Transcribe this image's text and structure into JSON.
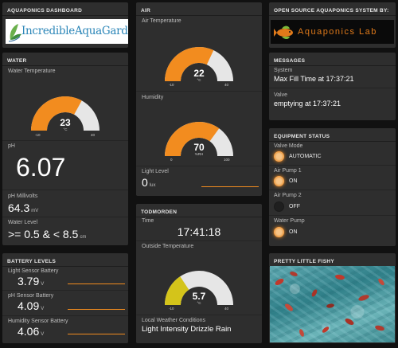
{
  "colors": {
    "accent": "#f28c1f",
    "gauge_track": "#e6e6e6",
    "air_temp": "#f28c1f",
    "outside_temp": "#d4c41a",
    "panel": "#2e2e2e",
    "background": "#111111"
  },
  "dashboard": {
    "title": "AQUAPONICS DASHBOARD",
    "logo_text": "IncredibleAquaGarden"
  },
  "water": {
    "title": "WATER",
    "temp_label": "Water Temperature",
    "temp_gauge": {
      "value": "23",
      "unit": "°C",
      "min": "-10",
      "max": "40",
      "fraction": 0.66
    },
    "ph_label": "pH",
    "ph_value": "6.07",
    "mv_label": "pH Millivolts",
    "mv_value": "64.3",
    "mv_unit": "mV",
    "level_label": "Water Level",
    "level_value": ">= 0.5 & < 8.5",
    "level_unit": "cm"
  },
  "battery": {
    "title": "BATTERY LEVELS",
    "items": [
      {
        "label": "Light Sensor Battery",
        "value": "3.79",
        "unit": "V"
      },
      {
        "label": "pH Sensor Battery",
        "value": "4.09",
        "unit": "V"
      },
      {
        "label": "Humidity Sensor Battery",
        "value": "4.06",
        "unit": "V"
      }
    ]
  },
  "air": {
    "title": "AIR",
    "temp_label": "Air Temperature",
    "temp_gauge": {
      "value": "22",
      "unit": "°C",
      "min": "-10",
      "max": "40",
      "fraction": 0.64
    },
    "humidity_label": "Humidity",
    "humidity_gauge": {
      "value": "70",
      "unit": "%RH",
      "min": "0",
      "max": "100",
      "fraction": 0.7
    },
    "light_label": "Light Level",
    "light_value": "0",
    "light_unit": "lux"
  },
  "todmorden": {
    "title": "TODMORDEN",
    "time_label": "Time",
    "time_value": "17:41:18",
    "outside_label": "Outside Temperature",
    "outside_gauge": {
      "value": "5.7",
      "unit": "°C",
      "min": "-10",
      "max": "40",
      "fraction": 0.314
    },
    "weather_label": "Local Weather Conditions",
    "weather_value": "Light Intensity Drizzle Rain"
  },
  "sponsor": {
    "title": "OPEN SOURCE AQUAPONICS SYSTEM BY:",
    "logo_text": "Aquaponics Lab"
  },
  "messages": {
    "title": "MESSAGES",
    "items": [
      {
        "label": "System",
        "value": "Max Fill Time at 17:37:21"
      },
      {
        "label": "Valve",
        "value": "emptying at 17:37:21"
      }
    ]
  },
  "equipment": {
    "title": "EQUIPMENT STATUS",
    "items": [
      {
        "label": "Valve Mode",
        "status": "AUTOMATIC",
        "on": true
      },
      {
        "label": "Air Pump 1",
        "status": "ON",
        "on": true
      },
      {
        "label": "Air Pump 2",
        "status": "OFF",
        "on": false
      },
      {
        "label": "Water Pump",
        "status": "ON",
        "on": true
      }
    ]
  },
  "fishy": {
    "title": "PRETTY LITTLE FISHY"
  }
}
